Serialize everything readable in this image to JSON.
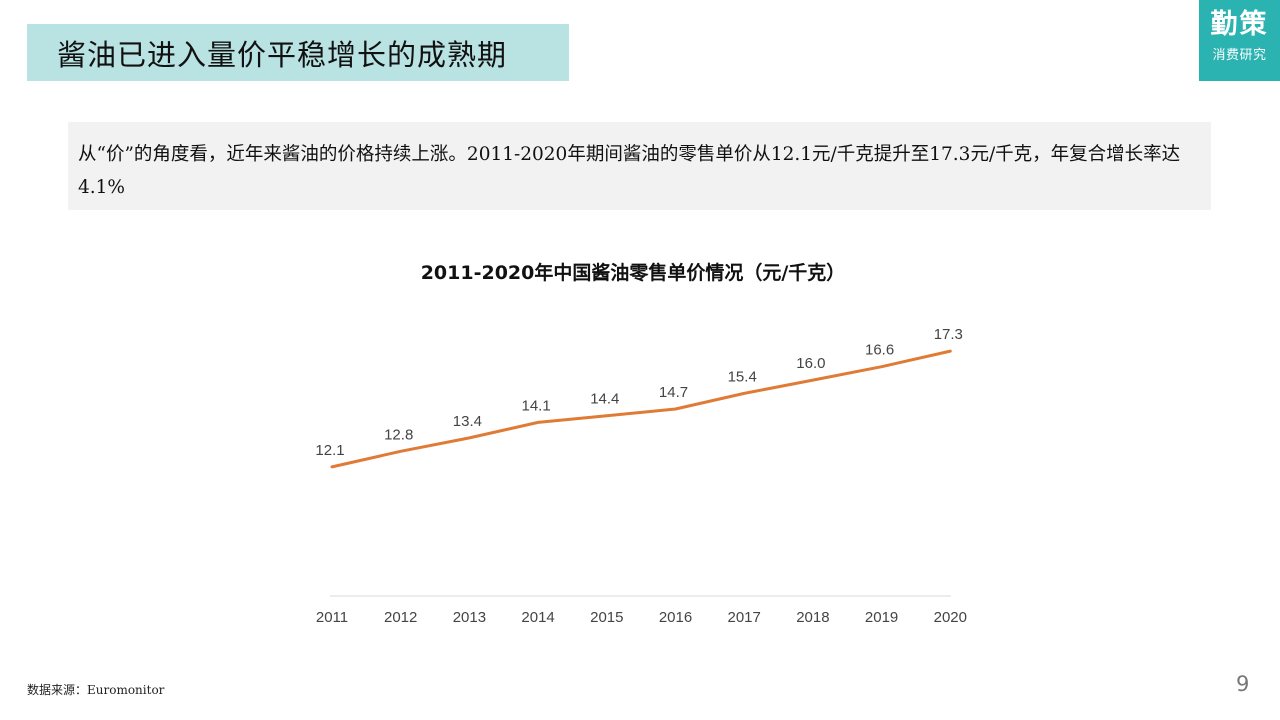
{
  "slide": {
    "title": "酱油已进入量价平稳增长的成熟期",
    "logo_main": "勤策",
    "logo_sub": "消费研究",
    "description": "从“价”的角度看，近年来酱油的价格持续上涨。2011-2020年期间酱油的零售单价从12.1元/千克提升至17.3元/千克，年复合增长率达4.1%",
    "source": "数据来源：Euromonitor",
    "page_number": "9"
  },
  "chart_data": {
    "type": "line",
    "title": "2011-2020年中国酱油零售单价情况（元/千克）",
    "categories": [
      "2011",
      "2012",
      "2013",
      "2014",
      "2015",
      "2016",
      "2017",
      "2018",
      "2019",
      "2020"
    ],
    "series": [
      {
        "values": [
          12.1,
          12.8,
          13.4,
          14.1,
          14.4,
          14.7,
          15.4,
          16.0,
          16.6,
          17.3
        ],
        "color": "#e07b35"
      }
    ],
    "data_labels": [
      "12.1",
      "12.8",
      "13.4",
      "14.1",
      "14.4",
      "14.7",
      "15.4",
      "16.0",
      "16.6",
      "17.3"
    ],
    "ylim": [
      6.3,
      17.8
    ],
    "grid": false,
    "legend": "none",
    "axis_color": "#d9d9d9"
  }
}
